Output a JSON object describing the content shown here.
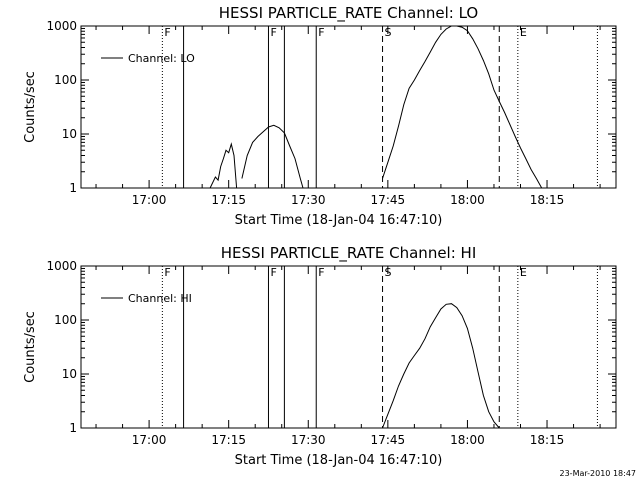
{
  "timestamp": "23-Mar-2010 18:47",
  "chart_data": [
    {
      "type": "line",
      "title": "HESSI PARTICLE_RATE Channel: LO",
      "xlabel": "Start Time (18-Jan-04 16:47:10)",
      "ylabel": "Counts/sec",
      "yscale": "log",
      "ylim": [
        1,
        1000
      ],
      "xlim": [
        "16:47:10",
        "18:28:00"
      ],
      "x_ticks": [
        "17:00",
        "17:15",
        "17:30",
        "17:45",
        "18:00",
        "18:15"
      ],
      "y_ticks": [
        "1",
        "10",
        "100",
        "1000"
      ],
      "legend": {
        "entry": "Channel: LO",
        "position": "top-left"
      },
      "markers": [
        {
          "time": "17:02:30",
          "style": "dotted",
          "label": "F"
        },
        {
          "time": "17:06:30",
          "style": "solid",
          "label": ""
        },
        {
          "time": "17:22:30",
          "style": "solid",
          "label": "F"
        },
        {
          "time": "17:25:30",
          "style": "solid",
          "label": ""
        },
        {
          "time": "17:31:30",
          "style": "solid",
          "label": "F"
        },
        {
          "time": "17:44:00",
          "style": "dashed",
          "label": "S"
        },
        {
          "time": "18:06:00",
          "style": "dashed",
          "label": ""
        },
        {
          "time": "18:09:30",
          "style": "dotted",
          "label": "E"
        },
        {
          "time": "18:24:30",
          "style": "dotted",
          "label": ""
        }
      ],
      "series": [
        {
          "name": "Channel: LO",
          "segments": [
            {
              "x": [
                "17:11:30",
                "17:12:30",
                "17:13:00",
                "17:13:30",
                "17:14:00",
                "17:14:30",
                "17:15:00",
                "17:15:30",
                "17:16:00",
                "17:16:30"
              ],
              "y": [
                1.0,
                1.6,
                1.4,
                2.5,
                3.5,
                5.0,
                4.5,
                6.5,
                4.0,
                1.0
              ]
            },
            {
              "x": [
                "17:17:30",
                "17:18:30",
                "17:19:30",
                "17:20:30",
                "17:21:30",
                "17:22:30",
                "17:23:30",
                "17:24:30",
                "17:25:30",
                "17:26:30",
                "17:27:30",
                "17:28:30",
                "17:29:00"
              ],
              "y": [
                1.5,
                4.0,
                7.0,
                9.0,
                11,
                13.5,
                14.5,
                13,
                10.5,
                6.0,
                3.5,
                1.5,
                1.0
              ]
            },
            {
              "x": [
                "17:44:00",
                "17:45:00",
                "17:46:00",
                "17:47:00",
                "17:48:00",
                "17:49:00",
                "17:50:00",
                "17:51:00",
                "17:52:00",
                "17:53:00",
                "17:54:00",
                "17:55:00",
                "17:56:00",
                "17:57:00",
                "17:58:00",
                "17:59:00",
                "18:00:00",
                "18:01:00",
                "18:02:00",
                "18:03:00",
                "18:04:00",
                "18:05:00",
                "18:06:00",
                "18:07:00",
                "18:08:00",
                "18:09:00",
                "18:10:00",
                "18:11:00",
                "18:12:00",
                "18:13:00",
                "18:14:00"
              ],
              "y": [
                1.5,
                3.0,
                6.0,
                14,
                35,
                70,
                100,
                150,
                220,
                330,
                500,
                700,
                880,
                1000,
                1000,
                950,
                820,
                580,
                380,
                230,
                130,
                65,
                40,
                25,
                15,
                9.0,
                5.5,
                3.5,
                2.2,
                1.5,
                1.0
              ]
            }
          ]
        }
      ]
    },
    {
      "type": "line",
      "title": "HESSI PARTICLE_RATE Channel: HI",
      "xlabel": "Start Time (18-Jan-04 16:47:10)",
      "ylabel": "Counts/sec",
      "yscale": "log",
      "ylim": [
        1,
        1000
      ],
      "xlim": [
        "16:47:10",
        "18:28:00"
      ],
      "x_ticks": [
        "17:00",
        "17:15",
        "17:30",
        "17:45",
        "18:00",
        "18:15"
      ],
      "y_ticks": [
        "1",
        "10",
        "100",
        "1000"
      ],
      "legend": {
        "entry": "Channel: HI",
        "position": "top-left"
      },
      "markers": [
        {
          "time": "17:02:30",
          "style": "dotted",
          "label": "F"
        },
        {
          "time": "17:06:30",
          "style": "solid",
          "label": ""
        },
        {
          "time": "17:22:30",
          "style": "solid",
          "label": "F"
        },
        {
          "time": "17:25:30",
          "style": "solid",
          "label": ""
        },
        {
          "time": "17:31:30",
          "style": "solid",
          "label": "F"
        },
        {
          "time": "17:44:00",
          "style": "dashed",
          "label": "S"
        },
        {
          "time": "18:06:00",
          "style": "dashed",
          "label": ""
        },
        {
          "time": "18:09:30",
          "style": "dotted",
          "label": "E"
        },
        {
          "time": "18:24:30",
          "style": "dotted",
          "label": ""
        }
      ],
      "series": [
        {
          "name": "Channel: HI",
          "segments": [
            {
              "x": [
                "17:44:00",
                "17:45:00",
                "17:46:00",
                "17:47:00",
                "17:48:00",
                "17:49:00",
                "17:50:00",
                "17:51:00",
                "17:52:00",
                "17:53:00",
                "17:54:00",
                "17:55:00",
                "17:56:00",
                "17:57:00",
                "17:58:00",
                "17:59:00",
                "18:00:00",
                "18:01:00",
                "18:02:00",
                "18:03:00",
                "18:04:00",
                "18:05:00",
                "18:06:00"
              ],
              "y": [
                1.0,
                1.8,
                3.2,
                6.0,
                10,
                16,
                22,
                30,
                45,
                75,
                110,
                160,
                195,
                200,
                170,
                120,
                70,
                30,
                11,
                4.0,
                2.0,
                1.3,
                1.0
              ]
            }
          ]
        }
      ]
    }
  ]
}
